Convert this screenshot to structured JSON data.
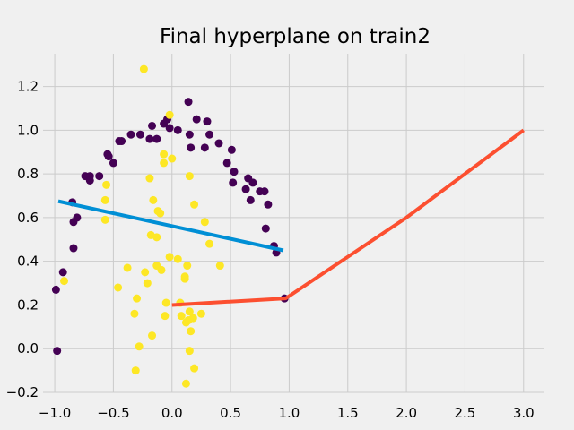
{
  "chart_data": {
    "type": "scatter",
    "title": "Final hyperplane on train2",
    "xlabel": "",
    "ylabel": "",
    "xlim": [
      -1.1,
      3.17
    ],
    "ylim": [
      -0.2,
      1.35
    ],
    "grid": true,
    "xticks": [
      -1.0,
      -0.5,
      0.0,
      0.5,
      1.0,
      1.5,
      2.0,
      2.5,
      3.0
    ],
    "xtick_labels": [
      "−1.0",
      "−0.5",
      "0.0",
      "0.5",
      "1.0",
      "1.5",
      "2.0",
      "2.5",
      "3.0"
    ],
    "yticks": [
      -0.2,
      0.0,
      0.2,
      0.4,
      0.6,
      0.8,
      1.0,
      1.2
    ],
    "ytick_labels": [
      "−0.2",
      "0.0",
      "0.2",
      "0.4",
      "0.6",
      "0.8",
      "1.0",
      "1.2"
    ],
    "colors": {
      "background": "#f0f0f0",
      "grid": "#cbcbcb",
      "class0": "#440154",
      "class1": "#fde725",
      "blue_line": "#008fd5",
      "red_line": "#fc4f30"
    },
    "series": [
      {
        "class": 0,
        "points": [
          [
            -0.99,
            0.27
          ],
          [
            -0.98,
            -0.01
          ],
          [
            -0.93,
            0.35
          ],
          [
            -0.85,
            0.67
          ],
          [
            -0.84,
            0.58
          ],
          [
            -0.84,
            0.46
          ],
          [
            -0.81,
            0.6
          ],
          [
            -0.74,
            0.79
          ],
          [
            -0.7,
            0.79
          ],
          [
            -0.7,
            0.77
          ],
          [
            -0.62,
            0.79
          ],
          [
            -0.55,
            0.89
          ],
          [
            -0.54,
            0.88
          ],
          [
            -0.5,
            0.85
          ],
          [
            -0.45,
            0.95
          ],
          [
            -0.43,
            0.95
          ],
          [
            -0.35,
            0.98
          ],
          [
            -0.27,
            0.98
          ],
          [
            -0.19,
            0.96
          ],
          [
            -0.17,
            1.02
          ],
          [
            -0.13,
            0.96
          ],
          [
            -0.07,
            1.03
          ],
          [
            -0.04,
            1.05
          ],
          [
            -0.02,
            1.01
          ],
          [
            0.05,
            1.0
          ],
          [
            0.14,
            1.13
          ],
          [
            0.15,
            0.98
          ],
          [
            0.16,
            0.92
          ],
          [
            0.21,
            1.05
          ],
          [
            0.28,
            0.92
          ],
          [
            0.3,
            1.04
          ],
          [
            0.32,
            0.98
          ],
          [
            0.4,
            0.94
          ],
          [
            0.47,
            0.85
          ],
          [
            0.51,
            0.91
          ],
          [
            0.52,
            0.76
          ],
          [
            0.53,
            0.81
          ],
          [
            0.63,
            0.73
          ],
          [
            0.65,
            0.78
          ],
          [
            0.67,
            0.68
          ],
          [
            0.69,
            0.76
          ],
          [
            0.75,
            0.72
          ],
          [
            0.79,
            0.72
          ],
          [
            0.8,
            0.55
          ],
          [
            0.82,
            0.66
          ],
          [
            0.87,
            0.47
          ],
          [
            0.89,
            0.44
          ],
          [
            0.96,
            0.23
          ]
        ]
      },
      {
        "class": 1,
        "points": [
          [
            -0.92,
            0.31
          ],
          [
            -0.57,
            0.59
          ],
          [
            -0.57,
            0.68
          ],
          [
            -0.56,
            0.75
          ],
          [
            -0.46,
            0.28
          ],
          [
            -0.38,
            0.37
          ],
          [
            -0.32,
            0.16
          ],
          [
            -0.31,
            -0.1
          ],
          [
            -0.3,
            0.23
          ],
          [
            -0.28,
            0.01
          ],
          [
            -0.24,
            1.28
          ],
          [
            -0.23,
            0.35
          ],
          [
            -0.21,
            0.3
          ],
          [
            -0.19,
            0.78
          ],
          [
            -0.18,
            0.52
          ],
          [
            -0.17,
            0.06
          ],
          [
            -0.16,
            0.68
          ],
          [
            -0.13,
            0.51
          ],
          [
            -0.13,
            0.38
          ],
          [
            -0.12,
            0.63
          ],
          [
            -0.1,
            0.62
          ],
          [
            -0.09,
            0.36
          ],
          [
            -0.07,
            0.89
          ],
          [
            -0.07,
            0.85
          ],
          [
            -0.06,
            0.15
          ],
          [
            -0.05,
            0.21
          ],
          [
            -0.02,
            1.07
          ],
          [
            -0.02,
            0.42
          ],
          [
            0.0,
            0.87
          ],
          [
            0.05,
            0.41
          ],
          [
            0.07,
            0.21
          ],
          [
            0.08,
            0.15
          ],
          [
            0.11,
            0.33
          ],
          [
            0.11,
            0.32
          ],
          [
            0.12,
            -0.16
          ],
          [
            0.12,
            0.12
          ],
          [
            0.13,
            0.38
          ],
          [
            0.14,
            0.13
          ],
          [
            0.15,
            0.79
          ],
          [
            0.15,
            0.17
          ],
          [
            0.15,
            -0.01
          ],
          [
            0.16,
            0.08
          ],
          [
            0.18,
            0.14
          ],
          [
            0.19,
            -0.09
          ],
          [
            0.19,
            0.66
          ],
          [
            0.25,
            0.16
          ],
          [
            0.28,
            0.58
          ],
          [
            0.32,
            0.48
          ],
          [
            0.41,
            0.38
          ]
        ]
      }
    ],
    "lines": [
      {
        "color_key": "blue_line",
        "x": [
          -0.97,
          0.95
        ],
        "y": [
          0.675,
          0.45
        ]
      },
      {
        "color_key": "red_line",
        "x": [
          0.0,
          0.97,
          2.0,
          3.0
        ],
        "y": [
          0.2,
          0.23,
          0.6,
          1.0
        ]
      }
    ]
  }
}
